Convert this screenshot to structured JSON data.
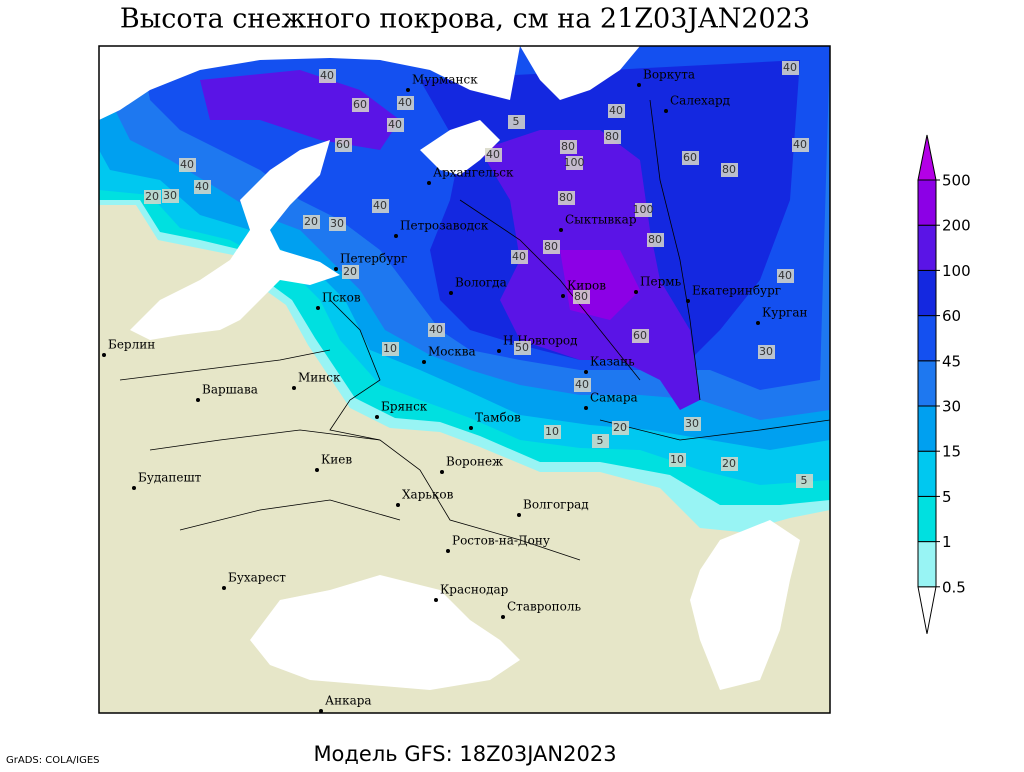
{
  "title": "Высота снежного покрова, см на 21Z03JAN2023",
  "footer": "Модель GFS: 18Z03JAN2023",
  "credit": "GrADS: COLA/IGES",
  "cities": [
    "Мурманск",
    "Воркута",
    "Салехард",
    "Архангельск",
    "Сыктывкар",
    "Петрозаводск",
    "Петербург",
    "Вологда",
    "Киров",
    "Пермь",
    "Екатеринбург",
    "Курган",
    "Псков",
    "Н.Новгород",
    "Москва",
    "Казань",
    "Берлин",
    "Минск",
    "Варшава",
    "Самара",
    "Брянск",
    "Тамбов",
    "Киев",
    "Воронеж",
    "Харьков",
    "Волгоград",
    "Будапешт",
    "Ростов-на-Дону",
    "Бухарест",
    "Краснодар",
    "Ставрополь",
    "Анкара"
  ],
  "contour_labels": [
    40,
    60,
    40,
    40,
    60,
    40,
    40,
    30,
    20,
    40,
    20,
    30,
    20,
    40,
    80,
    100,
    80,
    60,
    80,
    40,
    40,
    40,
    5,
    80,
    100,
    80,
    40,
    80,
    80,
    40,
    40,
    60,
    50,
    10,
    30,
    40,
    10,
    5,
    20,
    30,
    10,
    20,
    5
  ],
  "legend": {
    "levels": [
      0.5,
      1,
      5,
      15,
      30,
      45,
      60,
      100,
      200,
      500
    ],
    "colors": [
      "#ffffff",
      "#98f4f4",
      "#00e0e0",
      "#00c8f0",
      "#00a0f0",
      "#1e78f0",
      "#1450f0",
      "#1428e0",
      "#5a14e6",
      "#8c00e6",
      "#b400e6"
    ]
  }
}
